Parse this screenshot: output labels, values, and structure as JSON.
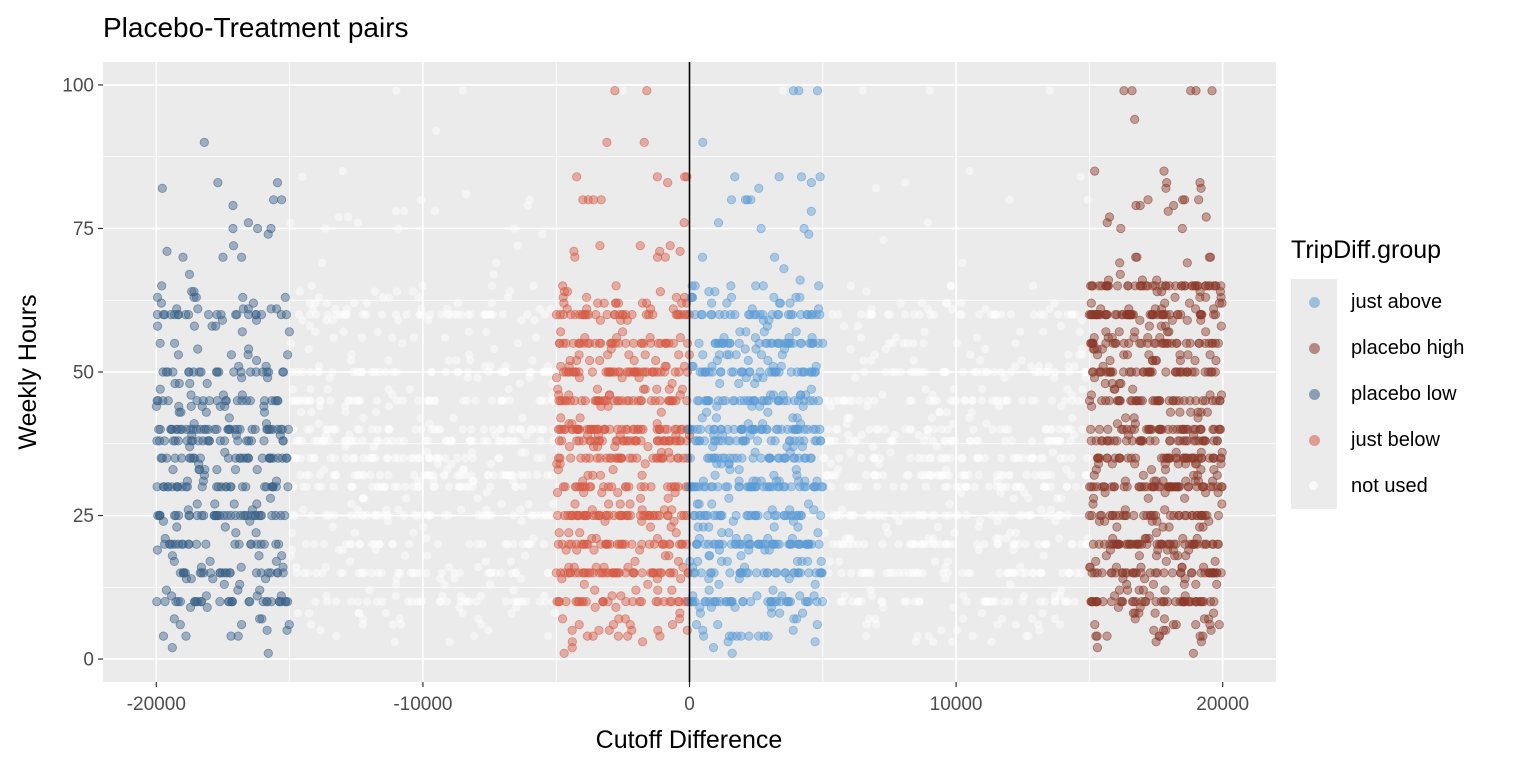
{
  "chart_data": {
    "type": "scatter",
    "title": "Placebo-Treatment pairs",
    "xlabel": "Cutoff Difference",
    "ylabel": "Weekly Hours",
    "xlim": [
      -22000,
      22000
    ],
    "ylim": [
      -4,
      104
    ],
    "x_ticks": [
      -20000,
      -10000,
      0,
      10000,
      20000
    ],
    "x_tick_labels": [
      "-20000",
      "-10000",
      "0",
      "10000",
      "20000"
    ],
    "y_ticks": [
      0,
      25,
      50,
      75,
      100
    ],
    "y_tick_labels": [
      "0",
      "25",
      "50",
      "75",
      "100"
    ],
    "grid": true,
    "vline_x": 0,
    "legend": {
      "title": "TripDiff.group",
      "position": "right",
      "entries": [
        {
          "label": "just above",
          "color": "#5b9bd5"
        },
        {
          "label": "placebo high",
          "color": "#8b3a2a"
        },
        {
          "label": "placebo low",
          "color": "#3a6289"
        },
        {
          "label": "just below",
          "color": "#d65a45"
        },
        {
          "label": "not used",
          "color": "#ffffff"
        }
      ]
    },
    "series": [
      {
        "name": "not used",
        "color": "#ffffff",
        "opacity": 0.45,
        "x_range": [
          -15000,
          15000
        ],
        "exclude_range": [
          -5000,
          5000
        ],
        "count": 1300,
        "common_values": [
          20,
          25,
          30,
          35,
          40,
          45,
          50,
          60,
          15,
          10,
          38,
          32
        ],
        "sample_points": [
          [
            -11000,
            99
          ],
          [
            -8500,
            99
          ],
          [
            -2500,
            99
          ],
          [
            3500,
            99
          ],
          [
            6500,
            99
          ],
          [
            9000,
            99
          ],
          [
            13500,
            99
          ],
          [
            -9500,
            92
          ],
          [
            -13000,
            85
          ],
          [
            10500,
            85
          ],
          [
            7000,
            82
          ],
          [
            -6000,
            80
          ],
          [
            12000,
            80
          ]
        ]
      },
      {
        "name": "placebo low",
        "color": "#3a6289",
        "opacity": 0.45,
        "x_range": [
          -20000,
          -15000
        ],
        "count": 420,
        "common_values": [
          40,
          35,
          30,
          25,
          20,
          50,
          45,
          60,
          15,
          38,
          10
        ],
        "sample_points": [
          [
            -18200,
            90
          ],
          [
            -15300,
            80
          ],
          [
            -15600,
            80
          ],
          [
            -16200,
            75
          ],
          [
            -15700,
            75
          ],
          [
            -19800,
            65
          ],
          [
            -18500,
            63
          ],
          [
            -19000,
            70
          ],
          [
            -17500,
            70
          ],
          [
            -16800,
            70
          ],
          [
            -19400,
            2
          ],
          [
            -15800,
            1
          ],
          [
            -17200,
            4
          ],
          [
            -19100,
            6
          ]
        ]
      },
      {
        "name": "just below",
        "color": "#d65a45",
        "opacity": 0.45,
        "x_range": [
          -5000,
          0
        ],
        "count": 620,
        "common_values": [
          40,
          35,
          30,
          25,
          20,
          50,
          45,
          60,
          15,
          38,
          55,
          10
        ],
        "sample_points": [
          [
            -2800,
            99
          ],
          [
            -1600,
            99
          ],
          [
            -3100,
            90
          ],
          [
            -1700,
            90
          ],
          [
            -100,
            84
          ],
          [
            -4000,
            80
          ],
          [
            -3800,
            80
          ],
          [
            -3600,
            80
          ],
          [
            -200,
            76
          ],
          [
            -4300,
            70
          ],
          [
            -1200,
            70
          ],
          [
            -4400,
            2
          ],
          [
            -4700,
            1
          ],
          [
            -3400,
            5
          ]
        ]
      },
      {
        "name": "just above",
        "color": "#5b9bd5",
        "opacity": 0.45,
        "x_range": [
          0,
          5000
        ],
        "count": 620,
        "common_values": [
          40,
          35,
          30,
          25,
          20,
          50,
          45,
          60,
          15,
          38,
          55,
          10
        ],
        "sample_points": [
          [
            3900,
            99
          ],
          [
            4100,
            99
          ],
          [
            4800,
            99
          ],
          [
            500,
            90
          ],
          [
            1700,
            84
          ],
          [
            2600,
            82
          ],
          [
            4900,
            84
          ],
          [
            4200,
            84
          ],
          [
            2300,
            80
          ],
          [
            2100,
            80
          ],
          [
            4300,
            75
          ],
          [
            100,
            65
          ],
          [
            900,
            2
          ],
          [
            1600,
            1
          ],
          [
            2800,
            4
          ]
        ]
      },
      {
        "name": "placebo high",
        "color": "#8b3a2a",
        "opacity": 0.45,
        "x_range": [
          15000,
          20000
        ],
        "count": 760,
        "common_values": [
          40,
          35,
          30,
          25,
          20,
          50,
          45,
          60,
          15,
          38,
          55,
          10,
          65
        ],
        "sample_points": [
          [
            16300,
            99
          ],
          [
            16600,
            99
          ],
          [
            18800,
            99
          ],
          [
            19000,
            99
          ],
          [
            19600,
            99
          ],
          [
            16700,
            94
          ],
          [
            15200,
            85
          ],
          [
            17800,
            85
          ],
          [
            17900,
            83
          ],
          [
            17200,
            80
          ],
          [
            18500,
            80
          ],
          [
            19100,
            80
          ],
          [
            15300,
            2
          ],
          [
            18900,
            1
          ],
          [
            19200,
            3
          ]
        ]
      }
    ]
  }
}
